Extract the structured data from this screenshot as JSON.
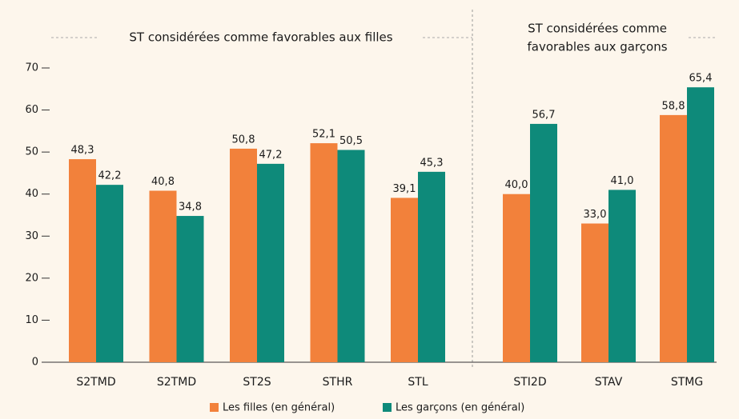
{
  "chart_data": {
    "type": "bar",
    "categories": [
      "S2TMD",
      "S2TMD",
      "ST2S",
      "STHR",
      "STL",
      "STI2D",
      "STAV",
      "STMG"
    ],
    "series": [
      {
        "name": "Les filles (en général)",
        "color": "#f2813b",
        "values": [
          48.3,
          40.8,
          50.8,
          52.1,
          39.1,
          40.0,
          33.0,
          58.8
        ],
        "value_labels": [
          "48,3",
          "40,8",
          "50,8",
          "52,1",
          "39,1",
          "40,0",
          "33,0",
          "58,8"
        ]
      },
      {
        "name": "Les garçons (en général)",
        "color": "#0e8a7a",
        "values": [
          42.2,
          34.8,
          47.2,
          50.5,
          45.3,
          56.7,
          41.0,
          65.4
        ],
        "value_labels": [
          "42,2",
          "34,8",
          "47,2",
          "50,5",
          "45,3",
          "56,7",
          "41,0",
          "65,4"
        ]
      }
    ],
    "annotations": [
      {
        "lines": [
          "ST considérées comme favorables aux filles"
        ]
      },
      {
        "lines": [
          "ST considérées comme",
          "favorables aux garçons"
        ]
      }
    ],
    "ylim": [
      0,
      70
    ],
    "yticks": [
      0,
      10,
      20,
      30,
      40,
      50,
      60,
      70
    ]
  }
}
